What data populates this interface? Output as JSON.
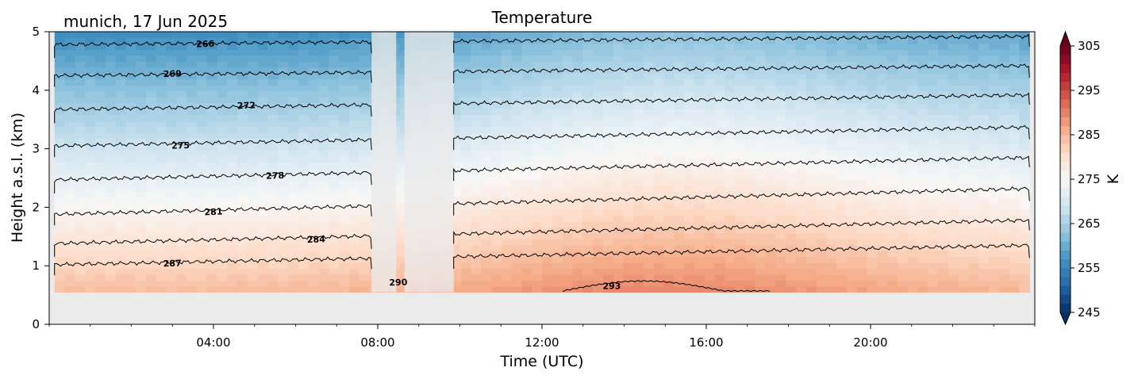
{
  "chart_data": {
    "type": "heatmap",
    "title": "Temperature",
    "location_label": "munich, 17 Jun 2025",
    "xlabel": "Time (UTC)",
    "ylabel": "Height a.s.l. (km)",
    "x_ticks": [
      "04:00",
      "08:00",
      "12:00",
      "16:00",
      "20:00"
    ],
    "x_tick_hours": [
      4,
      8,
      12,
      16,
      20
    ],
    "xlim_hours": [
      0,
      24
    ],
    "y_ticks": [
      "0",
      "1",
      "2",
      "3",
      "4",
      "5"
    ],
    "ylim_km": [
      0,
      5
    ],
    "data_start_hour": 0.13,
    "data_end_hour": 23.87,
    "data_bottom_km": 0.55,
    "gaps_hours": [
      [
        7.85,
        8.45
      ],
      [
        8.65,
        9.85
      ]
    ],
    "colorbar": {
      "label": "K",
      "min": 245,
      "max": 305,
      "ticks": [
        "305",
        "295",
        "285",
        "275",
        "265",
        "255",
        "245"
      ],
      "tick_values": [
        305,
        295,
        285,
        275,
        265,
        255,
        245
      ],
      "cmap": "RdBu_r"
    },
    "contour_levels": [
      266,
      269,
      272,
      275,
      278,
      281,
      284,
      287,
      290,
      293
    ],
    "contour_lines": [
      {
        "level": 266,
        "start_km": 4.78,
        "end_km": 4.92,
        "label": "266",
        "label_hour": 3.8
      },
      {
        "level": 269,
        "start_km": 4.25,
        "end_km": 4.42,
        "label": "269",
        "label_hour": 3.0
      },
      {
        "level": 272,
        "start_km": 3.67,
        "end_km": 3.92,
        "label": "272",
        "label_hour": 4.8
      },
      {
        "level": 275,
        "start_km": 3.05,
        "end_km": 3.37,
        "label": "275",
        "label_hour": 3.2
      },
      {
        "level": 278,
        "start_km": 2.47,
        "end_km": 2.85,
        "label": "278",
        "label_hour": 5.5
      },
      {
        "level": 281,
        "start_km": 1.88,
        "end_km": 2.32,
        "label": "281",
        "label_hour": 4.0
      },
      {
        "level": 284,
        "start_km": 1.38,
        "end_km": 1.78,
        "label": "284",
        "label_hour": 6.5
      },
      {
        "level": 287,
        "start_km": 1.02,
        "end_km": 1.35,
        "label": "287",
        "label_hour": 3.0
      },
      {
        "level": 290,
        "start_km": 0.55,
        "end_km": 0.55,
        "label": "290",
        "label_hour": 8.5
      }
    ],
    "warm_patch": {
      "level": 293,
      "label": "293",
      "label_hour": 13.7,
      "start_hour": 12.5,
      "end_hour": 17.6,
      "top_km": 0.72
    }
  }
}
